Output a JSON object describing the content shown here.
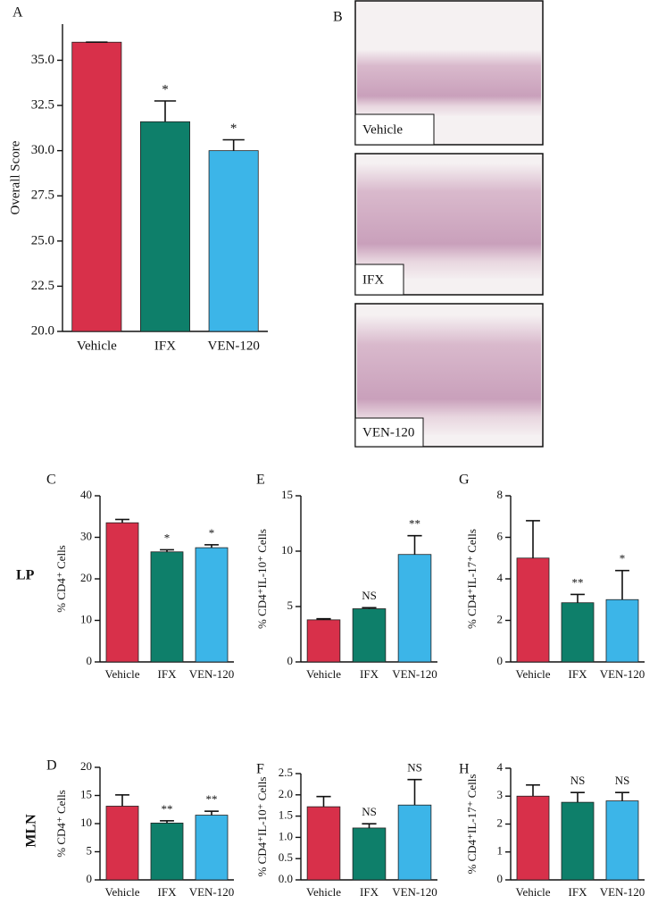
{
  "chart_data": [
    {
      "type": "bar",
      "panel_label": "A",
      "ylabel": "Overall Score",
      "categories": [
        "Vehicle",
        "IFX",
        "VEN-120"
      ],
      "values": [
        36.0,
        31.6,
        30.0
      ],
      "errors": [
        0,
        1.15,
        0.6
      ],
      "annotations": [
        null,
        "*",
        "*"
      ],
      "colors": [
        "#d8304a",
        "#0e7f6a",
        "#3cb5e8"
      ],
      "ylim": [
        20,
        37
      ],
      "yticks": [
        {
          "value": 20,
          "label": "20.0"
        },
        22.5,
        {
          "value": 25,
          "label": "25.0"
        },
        27.5,
        {
          "value": 30,
          "label": "30.0"
        },
        32.5,
        {
          "value": 35,
          "label": "35.0"
        }
      ]
    },
    {
      "type": "bar",
      "panel_label": "C",
      "ylabel": "% CD4⁺ Cells",
      "categories": [
        "Vehicle",
        "IFX",
        "VEN-120"
      ],
      "values": [
        33.5,
        26.5,
        27.5
      ],
      "errors": [
        0.8,
        0.5,
        0.7
      ],
      "annotations": [
        null,
        "*",
        "*"
      ],
      "colors": [
        "#d8304a",
        "#0e7f6a",
        "#3cb5e8"
      ],
      "ylim": [
        0,
        40
      ],
      "yticks": [
        0,
        10,
        20,
        30,
        40
      ]
    },
    {
      "type": "bar",
      "panel_label": "E",
      "ylabel": "% CD4⁺IL-10⁺ Cells",
      "categories": [
        "Vehicle",
        "IFX",
        "VEN-120"
      ],
      "values": [
        3.8,
        4.8,
        9.7
      ],
      "errors": [
        0.1,
        0.1,
        1.7
      ],
      "annotations": [
        null,
        "NS",
        "**"
      ],
      "colors": [
        "#d8304a",
        "#0e7f6a",
        "#3cb5e8"
      ],
      "ylim": [
        0,
        15
      ],
      "yticks": [
        0,
        5,
        10,
        15
      ]
    },
    {
      "type": "bar",
      "panel_label": "G",
      "ylabel": "% CD4⁺IL-17⁺ Cells",
      "categories": [
        "Vehicle",
        "IFX",
        "VEN-120"
      ],
      "values": [
        5.0,
        2.85,
        3.0
      ],
      "errors": [
        1.8,
        0.4,
        1.4
      ],
      "annotations": [
        null,
        "**",
        "*"
      ],
      "colors": [
        "#d8304a",
        "#0e7f6a",
        "#3cb5e8"
      ],
      "ylim": [
        0,
        8
      ],
      "yticks": [
        0,
        2,
        4,
        6,
        8
      ]
    },
    {
      "type": "bar",
      "panel_label": "D",
      "ylabel": "% CD4⁺ Cells",
      "categories": [
        "Vehicle",
        "IFX",
        "VEN-120"
      ],
      "values": [
        13.1,
        10.1,
        11.5
      ],
      "errors": [
        2.0,
        0.4,
        0.7
      ],
      "annotations": [
        null,
        "**",
        "**"
      ],
      "colors": [
        "#d8304a",
        "#0e7f6a",
        "#3cb5e8"
      ],
      "ylim": [
        0,
        20
      ],
      "yticks": [
        0,
        5,
        10,
        15,
        20
      ]
    },
    {
      "type": "bar",
      "panel_label": "F",
      "ylabel": "% CD4⁺IL-10⁺ Cells",
      "categories": [
        "Vehicle",
        "IFX",
        "VEN-120"
      ],
      "values": [
        1.72,
        1.22,
        1.76
      ],
      "errors": [
        0.24,
        0.1,
        0.6
      ],
      "annotations": [
        null,
        "NS",
        "NS"
      ],
      "colors": [
        "#d8304a",
        "#0e7f6a",
        "#3cb5e8"
      ],
      "ylim": [
        0,
        2.5
      ],
      "yticks": [
        {
          "value": 0,
          "label": "0.0"
        },
        0.5,
        {
          "value": 1,
          "label": "1.0"
        },
        1.5,
        {
          "value": 2,
          "label": "2.0"
        },
        2.5
      ]
    },
    {
      "type": "bar",
      "panel_label": "H",
      "ylabel": "% CD4⁺IL-17⁺ Cells",
      "categories": [
        "Vehicle",
        "IFX",
        "VEN-120"
      ],
      "values": [
        3.0,
        2.78,
        2.83
      ],
      "errors": [
        0.4,
        0.35,
        0.3
      ],
      "annotations": [
        null,
        "NS",
        "NS"
      ],
      "colors": [
        "#d8304a",
        "#0e7f6a",
        "#3cb5e8"
      ],
      "ylim": [
        0,
        4
      ],
      "yticks": [
        0,
        1,
        2,
        3,
        4
      ]
    }
  ],
  "image_panel": {
    "label": "B",
    "captions": [
      "Vehicle",
      "IFX",
      "VEN-120"
    ]
  },
  "row_labels": [
    "LP",
    "MLN"
  ]
}
